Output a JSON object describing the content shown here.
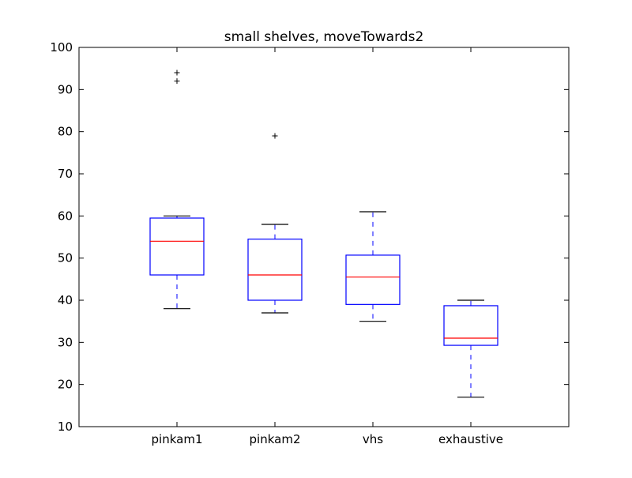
{
  "chart_data": {
    "type": "box",
    "title": "small shelves, moveTowards2",
    "xlabel": "",
    "ylabel": "",
    "ylim": [
      10,
      100
    ],
    "yticks": [
      10,
      20,
      30,
      40,
      50,
      60,
      70,
      80,
      90,
      100
    ],
    "grid": false,
    "categories": [
      "pinkam1",
      "pinkam2",
      "vhs",
      "exhaustive"
    ],
    "boxes": [
      {
        "label": "pinkam1",
        "whisker_low": 38,
        "q1": 46,
        "median": 54,
        "q3": 59.5,
        "whisker_high": 60,
        "outliers": [
          92,
          94
        ]
      },
      {
        "label": "pinkam2",
        "whisker_low": 37,
        "q1": 40,
        "median": 46,
        "q3": 54.5,
        "whisker_high": 58,
        "outliers": [
          79
        ]
      },
      {
        "label": "vhs",
        "whisker_low": 35,
        "q1": 39,
        "median": 45.5,
        "q3": 50.7,
        "whisker_high": 61,
        "outliers": []
      },
      {
        "label": "exhaustive",
        "whisker_low": 17,
        "q1": 29.3,
        "median": 31,
        "q3": 38.7,
        "whisker_high": 40,
        "outliers": []
      }
    ],
    "colors": {
      "box": "#0000ff",
      "median": "#ff0000",
      "whisker": "#0000ff",
      "cap": "#000000",
      "outlier": "#000000",
      "axes": "#000000"
    }
  }
}
